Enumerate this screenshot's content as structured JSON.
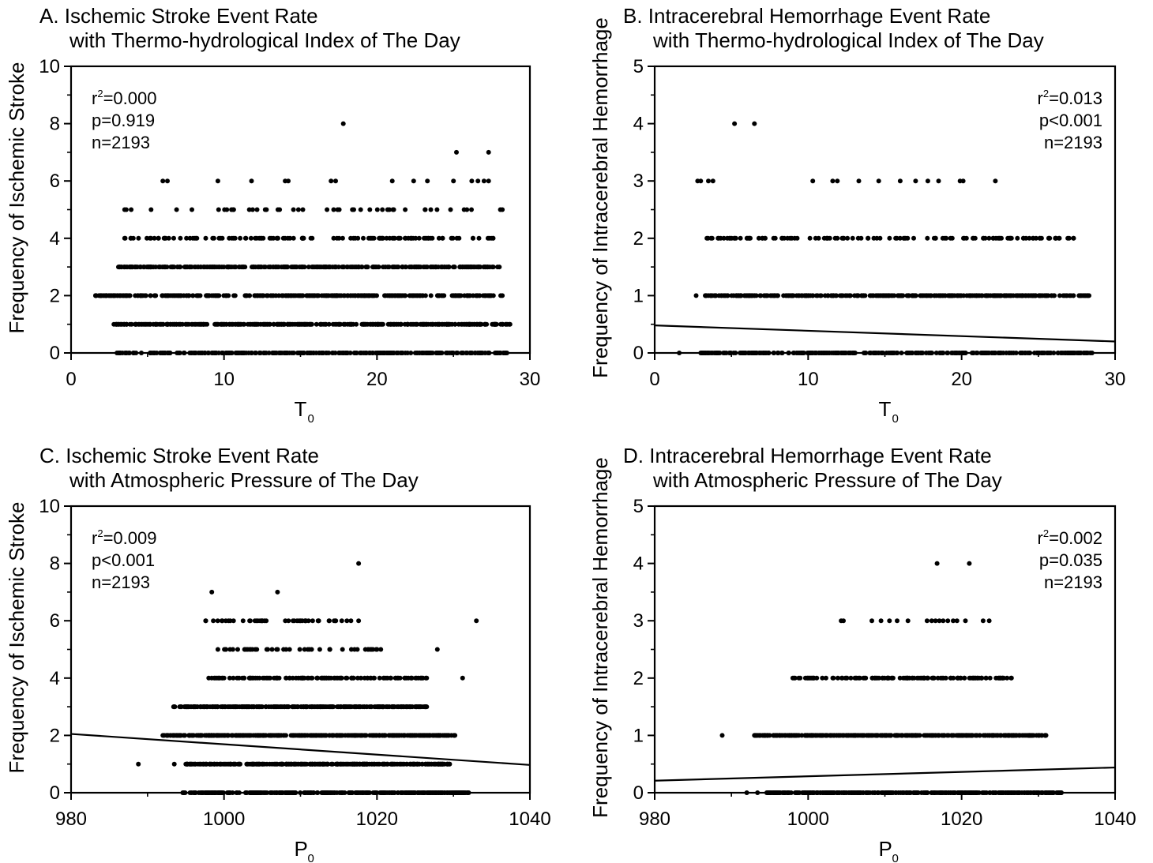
{
  "chart_data": [
    {
      "type": "scatter",
      "title": "A. Ischemic Stroke Event Rate",
      "subtitle": "with Thermo-hydrological Index of The Day",
      "xlabel_main": "T",
      "xlabel_sub": "0",
      "ylabel": "Frequency of Ischemic Stroke",
      "xlim": [
        0,
        30
      ],
      "ylim": [
        0,
        10
      ],
      "xticks": [
        0,
        10,
        20,
        30
      ],
      "yticks": [
        0,
        2,
        4,
        6,
        8,
        10
      ],
      "stats": [
        {
          "base": "r",
          "sup": "2",
          "rest": "=0.000"
        },
        {
          "base": "p=0.919"
        },
        {
          "base": "n=2193"
        }
      ],
      "stats_align": "left",
      "fit_line": null,
      "levels": [
        {
          "y": 0,
          "min": 3.0,
          "max": 28.5,
          "density": "dense"
        },
        {
          "y": 1,
          "min": 2.8,
          "max": 28.7,
          "density": "dense"
        },
        {
          "y": 2,
          "min": 1.6,
          "max": 28.2,
          "density": "dense",
          "extra": [
            1.6,
            2.8
          ]
        },
        {
          "y": 3,
          "min": 3.1,
          "max": 28.0,
          "density": "dense"
        },
        {
          "y": 4,
          "min": 3.5,
          "max": 27.6,
          "density": "medium"
        },
        {
          "y": 5,
          "min": 3.5,
          "max": 28.2,
          "density": "sparse"
        },
        {
          "y": 6,
          "min": 6.0,
          "max": 27.5,
          "density": "veryfew",
          "points": [
            6.0,
            6.3,
            9.6,
            11.8,
            14.0,
            14.2,
            17.0,
            17.3,
            21.0,
            22.4,
            23.3,
            25.0,
            26.2,
            26.6,
            27.0,
            27.3
          ]
        },
        {
          "y": 7,
          "points": [
            25.2,
            27.3
          ]
        },
        {
          "y": 8,
          "points": [
            17.8
          ]
        }
      ]
    },
    {
      "type": "scatter",
      "title": "B. Intracerebral Hemorrhage Event Rate",
      "subtitle": "with Thermo-hydrological Index of The Day",
      "xlabel_main": "T",
      "xlabel_sub": "0",
      "ylabel": "Frequency of Intracerebral Hemorrhage",
      "xlim": [
        0,
        30
      ],
      "ylim": [
        0,
        5
      ],
      "xticks": [
        0,
        10,
        20,
        30
      ],
      "yticks": [
        0,
        1,
        2,
        3,
        4,
        5
      ],
      "stats": [
        {
          "base": "r",
          "sup": "2",
          "rest": "=0.013"
        },
        {
          "base": "p<0.001"
        },
        {
          "base": "n=2193"
        }
      ],
      "stats_align": "right",
      "fit_line": {
        "x": [
          0,
          30
        ],
        "y": [
          0.48,
          0.2
        ]
      },
      "levels": [
        {
          "y": 0,
          "min": 3.0,
          "max": 28.5,
          "density": "dense",
          "extra": [
            1.6
          ]
        },
        {
          "y": 1,
          "min": 3.3,
          "max": 28.3,
          "density": "dense",
          "extra": [
            2.7
          ]
        },
        {
          "y": 2,
          "min": 3.4,
          "max": 27.3,
          "density": "medium"
        },
        {
          "y": 3,
          "points": [
            2.8,
            3.0,
            3.5,
            3.8,
            10.3,
            11.6,
            11.9,
            13.3,
            14.6,
            16.0,
            17.0,
            17.8,
            18.5,
            19.9,
            20.1,
            22.2
          ]
        },
        {
          "y": 4,
          "points": [
            5.2,
            6.5
          ]
        }
      ]
    },
    {
      "type": "scatter",
      "title": "C. Ischemic Stroke Event Rate",
      "subtitle": "with Atmospheric Pressure of The Day",
      "xlabel_main": "P",
      "xlabel_sub": "0",
      "ylabel": "Frequency of Ischemic Stroke",
      "xlim": [
        980,
        1040
      ],
      "ylim": [
        0,
        10
      ],
      "xticks": [
        980,
        1000,
        1020,
        1040
      ],
      "yticks": [
        0,
        2,
        4,
        6,
        8,
        10
      ],
      "stats": [
        {
          "base": "r",
          "sup": "2",
          "rest": "=0.009"
        },
        {
          "base": "p<0.001"
        },
        {
          "base": "n=2193"
        }
      ],
      "stats_align": "left",
      "fit_line": {
        "x": [
          980,
          1040
        ],
        "y": [
          2.05,
          0.97
        ]
      },
      "levels": [
        {
          "y": 0,
          "min": 994.6,
          "max": 1032.0,
          "density": "dense"
        },
        {
          "y": 1,
          "min": 995.0,
          "max": 1029.5,
          "density": "dense",
          "extra": [
            988.8,
            993.5
          ]
        },
        {
          "y": 2,
          "min": 992.0,
          "max": 1030.2,
          "density": "dense"
        },
        {
          "y": 3,
          "min": 993.4,
          "max": 1026.5,
          "density": "dense"
        },
        {
          "y": 4,
          "min": 998.0,
          "max": 1026.5,
          "density": "medium",
          "extra": [
            1031.2
          ]
        },
        {
          "y": 5,
          "min": 999.2,
          "max": 1020.5,
          "density": "sparse",
          "extra": [
            1027.9
          ]
        },
        {
          "y": 6,
          "min": 997.6,
          "max": 1017.6,
          "density": "sparse",
          "extra": [
            1033.0
          ]
        },
        {
          "y": 7,
          "points": [
            998.4,
            1007.0
          ]
        },
        {
          "y": 8,
          "points": [
            1017.6
          ]
        }
      ]
    },
    {
      "type": "scatter",
      "title": "D. Intracerebral Hemorrhage Event Rate",
      "subtitle": "with Atmospheric Pressure of The Day",
      "xlabel_main": "P",
      "xlabel_sub": "0",
      "ylabel": "Frequency of Intracerebral Hemorrhage",
      "xlim": [
        980,
        1040
      ],
      "ylim": [
        0,
        5
      ],
      "xticks": [
        980,
        1000,
        1020,
        1040
      ],
      "yticks": [
        0,
        1,
        2,
        3,
        4,
        5
      ],
      "stats": [
        {
          "base": "r",
          "sup": "2",
          "rest": "=0.002"
        },
        {
          "base": "p=0.035"
        },
        {
          "base": "n=2193"
        }
      ],
      "stats_align": "right",
      "fit_line": {
        "x": [
          980,
          1040
        ],
        "y": [
          0.21,
          0.44
        ]
      },
      "levels": [
        {
          "y": 0,
          "min": 994.6,
          "max": 1033.0,
          "density": "dense",
          "extra": [
            992.0,
            993.4
          ]
        },
        {
          "y": 1,
          "min": 993.0,
          "max": 1031.0,
          "density": "dense",
          "extra": [
            988.8
          ]
        },
        {
          "y": 2,
          "min": 998.0,
          "max": 1026.5,
          "density": "medium"
        },
        {
          "y": 3,
          "points": [
            1004.3,
            1004.6,
            1008.3,
            1009.5,
            1010.6,
            1011.6,
            1013.0,
            1015.5,
            1016.1,
            1016.6,
            1017.1,
            1017.6,
            1018.2,
            1018.9,
            1019.4,
            1020.5,
            1022.8,
            1023.6
          ]
        },
        {
          "y": 4,
          "points": [
            1016.8,
            1021.0
          ]
        }
      ]
    }
  ]
}
